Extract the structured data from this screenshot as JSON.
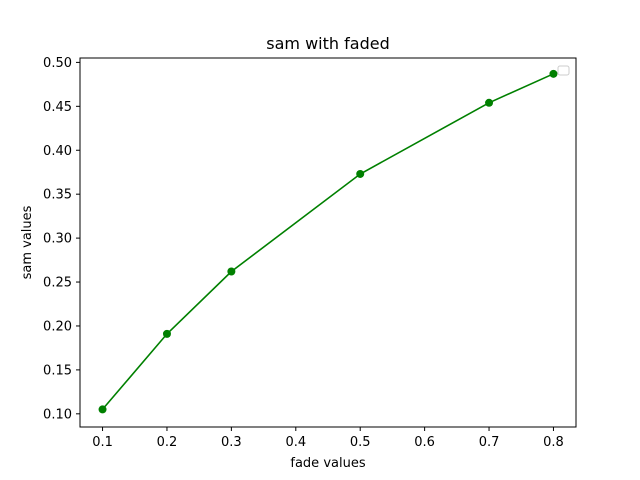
{
  "chart_data": {
    "type": "line",
    "title": "sam with faded",
    "xlabel": "fade values",
    "ylabel": "sam values",
    "xlim": [
      0.065,
      0.835
    ],
    "ylim": [
      0.085,
      0.505
    ],
    "x_ticks": [
      "0.1",
      "0.2",
      "0.3",
      "0.4",
      "0.5",
      "0.6",
      "0.7",
      "0.8"
    ],
    "y_ticks": [
      "0.10",
      "0.15",
      "0.20",
      "0.25",
      "0.30",
      "0.35",
      "0.40",
      "0.45",
      "0.50"
    ],
    "grid": false,
    "legend": {
      "position": "top-right",
      "entries": []
    },
    "series": [
      {
        "color": "#008000",
        "marker": "circle",
        "x": [
          0.1,
          0.2,
          0.3,
          0.5,
          0.7,
          0.8
        ],
        "y": [
          0.105,
          0.191,
          0.262,
          0.373,
          0.454,
          0.487
        ]
      }
    ]
  }
}
